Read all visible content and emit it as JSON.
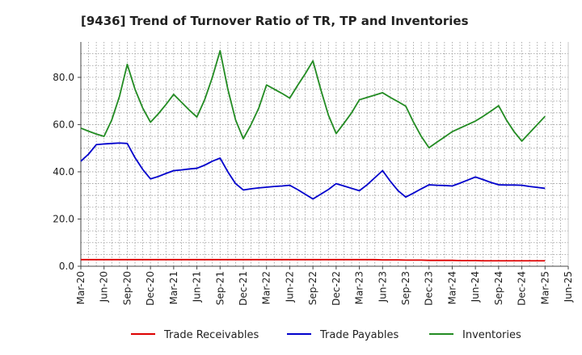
{
  "chart_data": {
    "type": "line",
    "title": "[9436]  Trend of Turnover Ratio of TR, TP and Inventories",
    "xlabel": "",
    "ylabel": "",
    "ylim": [
      0,
      95
    ],
    "yticks": [
      "0.0",
      "20.0",
      "40.0",
      "60.0",
      "80.0"
    ],
    "x_tick_labels": [
      "Mar-20",
      "Jun-20",
      "Sep-20",
      "Dec-20",
      "Mar-21",
      "Jun-21",
      "Sep-21",
      "Dec-21",
      "Mar-22",
      "Jun-22",
      "Sep-22",
      "Dec-22",
      "Mar-23",
      "Jun-23",
      "Sep-23",
      "Dec-23",
      "Mar-24",
      "Jun-24",
      "Sep-24",
      "Dec-24",
      "Mar-25",
      "Jun-25"
    ],
    "x": [
      "Mar-20",
      "Apr-20",
      "May-20",
      "Jun-20",
      "Jul-20",
      "Aug-20",
      "Sep-20",
      "Oct-20",
      "Nov-20",
      "Dec-20",
      "Jan-21",
      "Feb-21",
      "Mar-21",
      "Apr-21",
      "May-21",
      "Jun-21",
      "Jul-21",
      "Aug-21",
      "Sep-21",
      "Oct-21",
      "Nov-21",
      "Dec-21",
      "Jan-22",
      "Feb-22",
      "Mar-22",
      "Apr-22",
      "May-22",
      "Jun-22",
      "Jul-22",
      "Aug-22",
      "Sep-22",
      "Oct-22",
      "Nov-22",
      "Dec-22",
      "Jan-23",
      "Feb-23",
      "Mar-23",
      "Apr-23",
      "May-23",
      "Jun-23",
      "Jul-23",
      "Aug-23",
      "Sep-23",
      "Oct-23",
      "Nov-23",
      "Dec-23",
      "Jan-24",
      "Feb-24",
      "Mar-24",
      "Apr-24",
      "May-24",
      "Jun-24",
      "Jul-24",
      "Aug-24",
      "Sep-24",
      "Oct-24",
      "Nov-24",
      "Dec-24",
      "Jan-25",
      "Feb-25",
      "Mar-25"
    ],
    "grid": true,
    "legend_position": "bottom",
    "series": [
      {
        "name": "Trade Receivables",
        "color": "#dd0000",
        "values": [
          2.8,
          2.8,
          2.8,
          2.8,
          2.8,
          2.8,
          2.8,
          2.8,
          2.8,
          2.8,
          2.8,
          2.8,
          2.8,
          2.8,
          2.8,
          2.8,
          2.8,
          2.8,
          2.8,
          2.8,
          2.8,
          2.8,
          2.8,
          2.8,
          2.8,
          2.8,
          2.8,
          2.8,
          2.8,
          2.8,
          2.8,
          2.8,
          2.8,
          2.8,
          2.8,
          2.8,
          2.8,
          2.8,
          2.8,
          2.7,
          2.7,
          2.7,
          2.6,
          2.6,
          2.6,
          2.5,
          2.5,
          2.5,
          2.5,
          2.4,
          2.4,
          2.4,
          2.3,
          2.3,
          2.3,
          2.3,
          2.3,
          2.3,
          2.3,
          2.3,
          2.3
        ]
      },
      {
        "name": "Trade Payables",
        "color": "#0000cc",
        "values": [
          44.5,
          47.5,
          51.5,
          51.8,
          52.0,
          52.2,
          52.0,
          46.0,
          41.0,
          37.0,
          38.0,
          39.3,
          40.5,
          40.8,
          41.2,
          41.5,
          42.8,
          44.5,
          45.8,
          40.0,
          35.0,
          32.3,
          32.8,
          33.2,
          33.5,
          33.8,
          34.0,
          34.3,
          32.5,
          30.5,
          28.5,
          30.5,
          32.5,
          35.0,
          34.0,
          33.0,
          32.0,
          34.5,
          37.5,
          40.5,
          36.0,
          32.0,
          29.3,
          31.0,
          32.8,
          34.5,
          34.3,
          34.2,
          34.0,
          35.2,
          36.5,
          37.8,
          36.7,
          35.5,
          34.5,
          34.4,
          34.4,
          34.3,
          33.8,
          33.4,
          33.0
        ]
      },
      {
        "name": "Inventories",
        "color": "#228b22",
        "values": [
          58.5,
          57.2,
          56.0,
          55.0,
          62.0,
          72.0,
          85.5,
          75.0,
          67.0,
          61.0,
          64.5,
          68.5,
          72.8,
          69.5,
          66.2,
          63.2,
          70.5,
          80.0,
          91.3,
          75.0,
          62.0,
          54.0,
          60.0,
          67.0,
          76.8,
          75.0,
          73.2,
          71.2,
          76.5,
          81.5,
          87.0,
          75.0,
          64.0,
          56.2,
          60.5,
          65.0,
          70.5,
          71.5,
          72.5,
          73.5,
          71.5,
          69.7,
          67.8,
          61.0,
          55.0,
          50.2,
          52.5,
          54.7,
          57.0,
          58.5,
          60.0,
          61.5,
          63.5,
          65.7,
          68.0,
          62.0,
          57.0,
          53.0,
          56.5,
          60.0,
          63.5
        ]
      }
    ]
  }
}
